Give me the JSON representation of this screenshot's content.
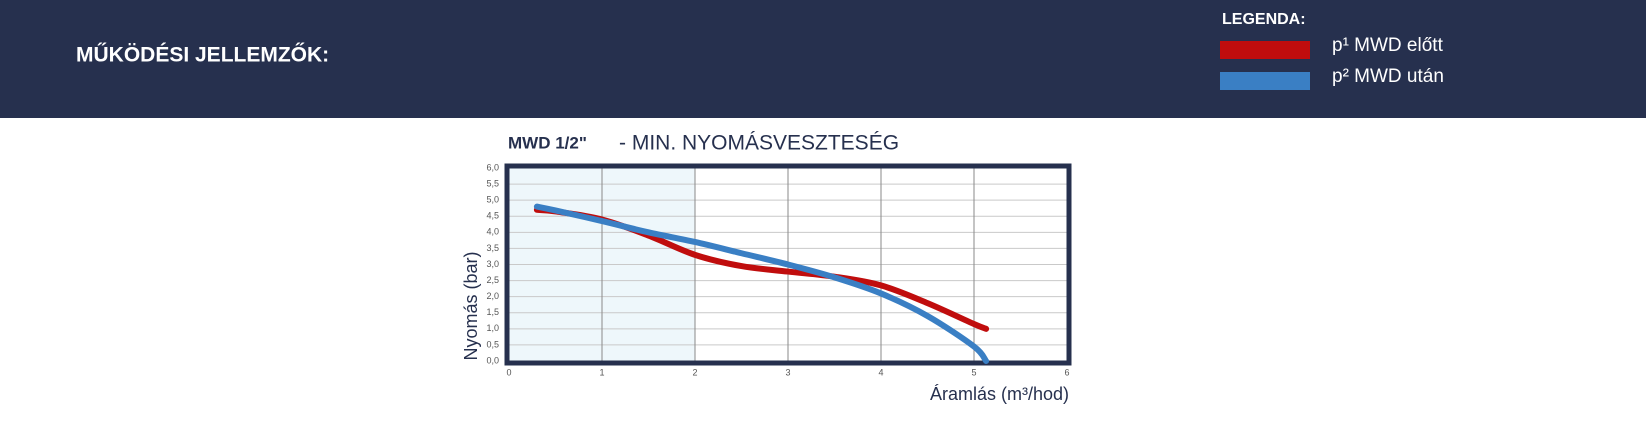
{
  "header": {
    "title": "MŰKÖDÉSI JELLEMZŐK:",
    "legend_title": "LEGENDA:"
  },
  "chart_data": {
    "type": "line",
    "title": "MWD 1/2\"",
    "subtitle": "- MIN. NYOMÁSVESZTESÉG",
    "x_label": "Áramlás (m³/hod)",
    "y_label": "Nyomás (bar)",
    "xlim": [
      0,
      6
    ],
    "xticks": [
      0,
      1,
      2,
      3,
      4,
      5,
      6
    ],
    "ylim": [
      0,
      6
    ],
    "yticks": [
      {
        "value": 0,
        "label": "0,0"
      },
      {
        "value": 0.5,
        "label": "0,5"
      },
      {
        "value": 1,
        "label": "1,0"
      },
      {
        "value": 1.5,
        "label": "1,5"
      },
      {
        "value": 2,
        "label": "2,0"
      },
      {
        "value": 2.5,
        "label": "2,5"
      },
      {
        "value": 3,
        "label": "3,0"
      },
      {
        "value": 3.5,
        "label": "3,5"
      },
      {
        "value": 4,
        "label": "4,0"
      },
      {
        "value": 4.5,
        "label": "4,5"
      },
      {
        "value": 5,
        "label": "5,0"
      },
      {
        "value": 5.5,
        "label": "5,5"
      },
      {
        "value": 6,
        "label": "6,0"
      }
    ],
    "grid": true,
    "shaded_xrange": [
      0,
      2
    ],
    "x": [
      0.3,
      0.5,
      1,
      1.5,
      2,
      2.5,
      3,
      3.5,
      4,
      4.5,
      5,
      5.13
    ],
    "series": [
      {
        "name": "p¹  MWD előtt",
        "color": "#c00d0d",
        "values": [
          4.7,
          4.65,
          4.4,
          3.9,
          3.3,
          2.95,
          2.78,
          2.62,
          2.35,
          1.8,
          1.15,
          1.0
        ]
      },
      {
        "name": "p²  MWD után",
        "color": "#3a7fc4",
        "values": [
          4.8,
          4.68,
          4.35,
          4.0,
          3.7,
          3.35,
          3.0,
          2.6,
          2.1,
          1.4,
          0.45,
          0.0
        ]
      }
    ]
  }
}
